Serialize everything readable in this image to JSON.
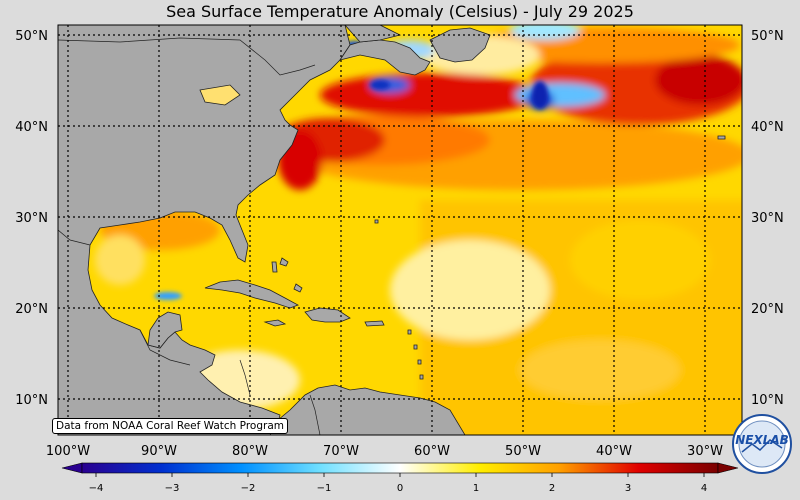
{
  "title": "Sea Surface Temperature Anomaly (Celsius) - July 29 2025",
  "credit": "Data from NOAA Coral Reef Watch Program",
  "lat_labels": [
    "50°N",
    "40°N",
    "30°N",
    "20°N",
    "10°N"
  ],
  "lon_labels": [
    "100°W",
    "90°W",
    "80°W",
    "70°W",
    "60°W",
    "50°W",
    "40°W",
    "30°W"
  ],
  "colorbar": {
    "ticks": [
      "−4",
      "−3",
      "−2",
      "−1",
      "0",
      "1",
      "2",
      "3",
      "4"
    ],
    "colors": [
      "#2a0090",
      "#0040e0",
      "#00a0ff",
      "#ffffff",
      "#ffee00",
      "#ffa000",
      "#e00000",
      "#8a0000"
    ]
  },
  "logo_text": "NEXLAB",
  "colors": {
    "land": "#a8a8a8",
    "ocean_base": "#ffd400",
    "warm": "#ff6a00",
    "hot": "#d80000",
    "cold": "#1060e0",
    "background": "#dcdcdc"
  }
}
